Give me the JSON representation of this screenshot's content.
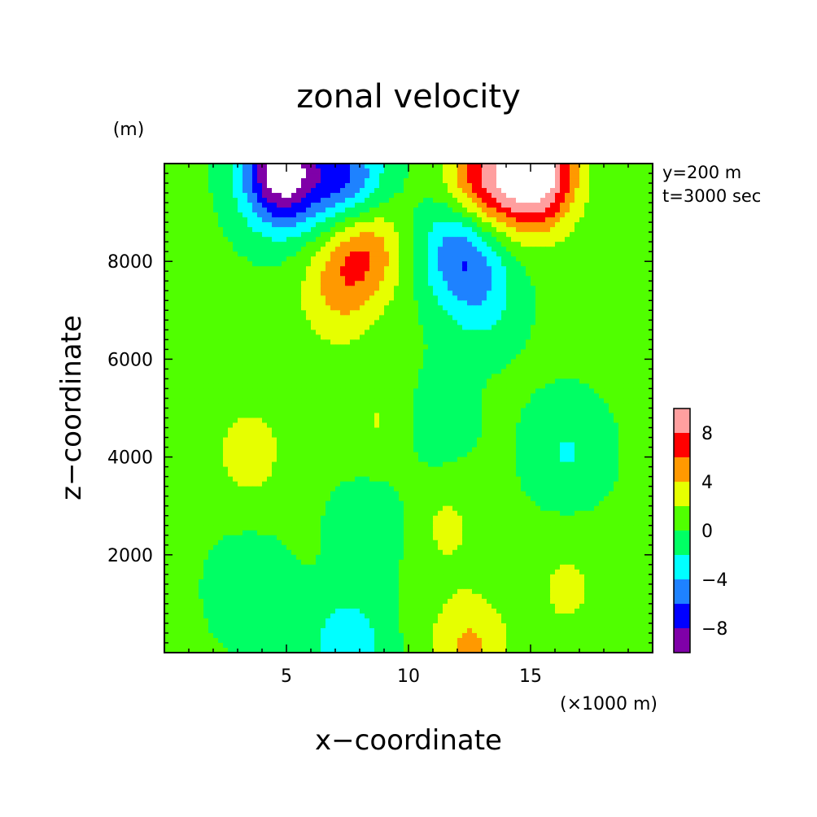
{
  "chart_data": {
    "type": "heatmap",
    "title": "zonal velocity",
    "xlabel": "x−coordinate",
    "ylabel": "z−coordinate",
    "x_unit": "(×1000 m)",
    "y_unit": "(m)",
    "annotations": [
      "y=200 m",
      "t=3000 sec"
    ],
    "xlim": [
      0,
      20
    ],
    "ylim": [
      0,
      10000
    ],
    "x_ticks": [
      5,
      10,
      15
    ],
    "y_ticks": [
      2000,
      4000,
      6000,
      8000
    ],
    "colorbar": {
      "levels": [
        -10,
        -8,
        -6,
        -4,
        -2,
        0,
        2,
        4,
        6,
        8,
        10
      ],
      "colors": [
        "#7f00a8",
        "#0000ff",
        "#1e82ff",
        "#00ffff",
        "#00ff64",
        "#50ff00",
        "#e6ff00",
        "#ff9900",
        "#ff0000",
        "#ff9f9f"
      ],
      "tick_values": [
        -8,
        -4,
        0,
        4,
        8
      ],
      "tick_labels": [
        "−8",
        "−4",
        "0",
        "4",
        "8"
      ]
    },
    "field_features": [
      {
        "x": 4.8,
        "z": 9800,
        "u": -12
      },
      {
        "x": 15.2,
        "z": 9800,
        "u": 12
      },
      {
        "x": 7.5,
        "z": 9600,
        "u": -7
      },
      {
        "x": 13.0,
        "z": 9600,
        "u": 7
      },
      {
        "x": 8.1,
        "z": 8300,
        "u": 6
      },
      {
        "x": 12.1,
        "z": 8300,
        "u": -6
      },
      {
        "x": 7.0,
        "z": 7300,
        "u": 3
      },
      {
        "x": 13.0,
        "z": 7300,
        "u": -3
      },
      {
        "x": 3.5,
        "z": 4100,
        "u": 2.5
      },
      {
        "x": 16.5,
        "z": 4100,
        "u": -2.5
      },
      {
        "x": 9.0,
        "z": 4700,
        "u": 2
      },
      {
        "x": 11.0,
        "z": 4700,
        "u": -2
      },
      {
        "x": 3.5,
        "z": 1300,
        "u": -2
      },
      {
        "x": 16.5,
        "z": 1300,
        "u": 2
      },
      {
        "x": 8.5,
        "z": 2600,
        "u": -2
      },
      {
        "x": 11.5,
        "z": 2600,
        "u": 2
      },
      {
        "x": 7.5,
        "z": 100,
        "u": -4
      },
      {
        "x": 12.5,
        "z": 100,
        "u": 4
      }
    ]
  }
}
